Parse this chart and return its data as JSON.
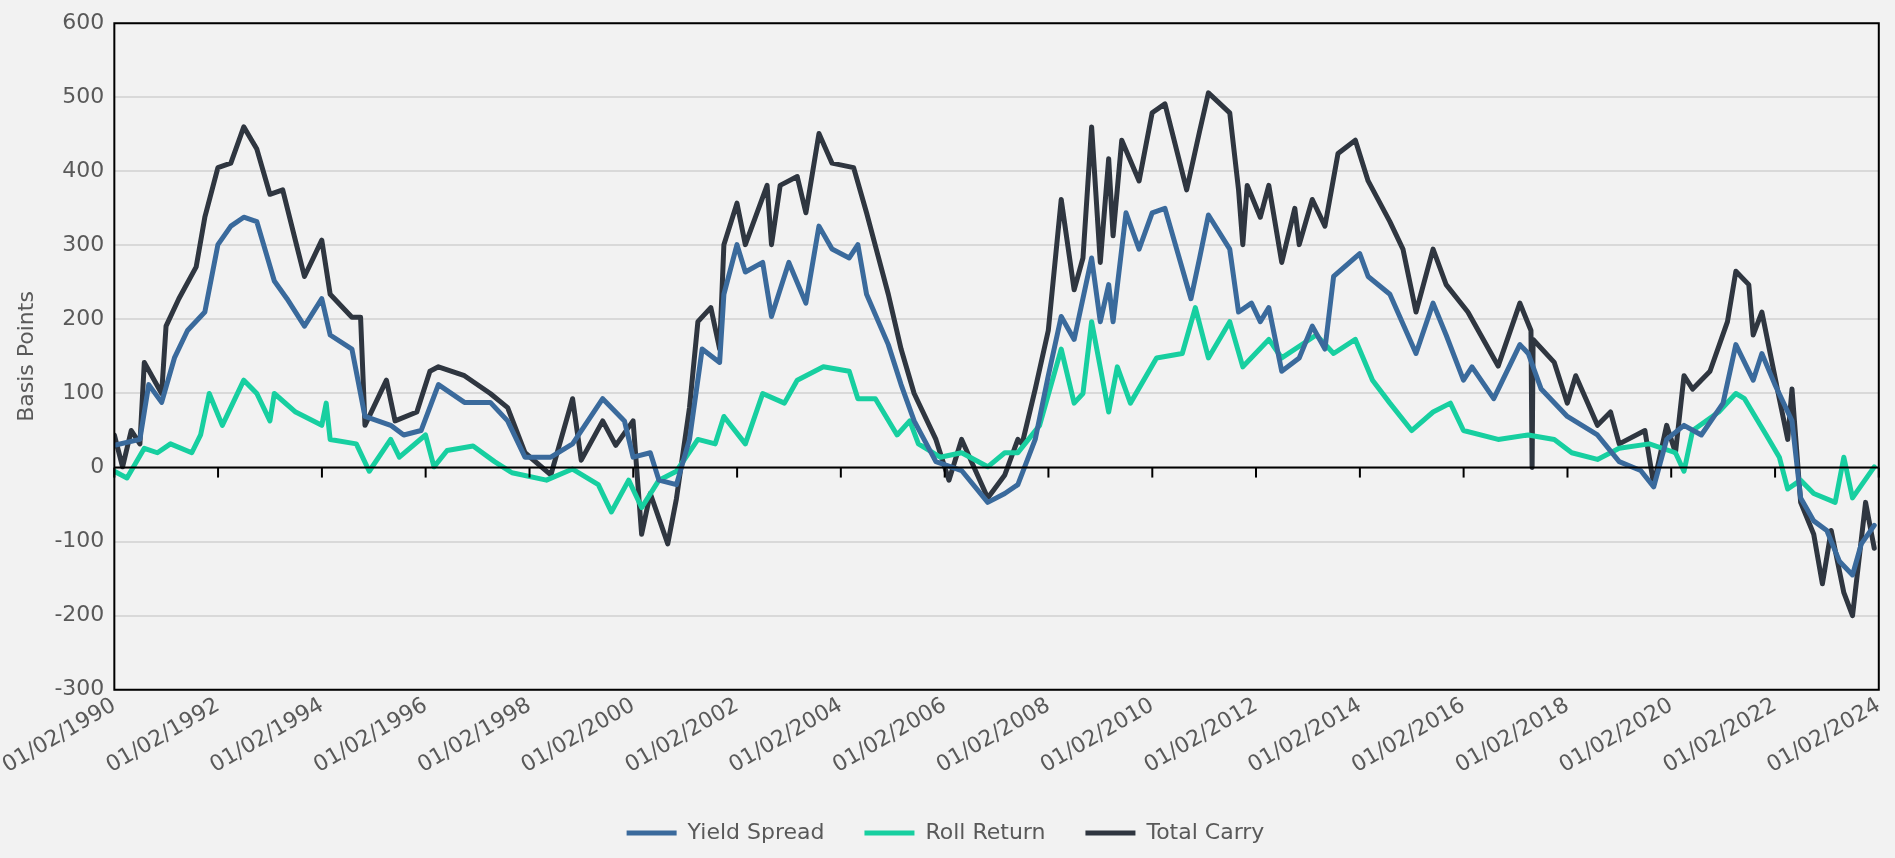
{
  "chart_data": {
    "type": "line",
    "ylabel": "Basis Points",
    "xlim": [
      "1990-01-02",
      "2024-01-02"
    ],
    "xticks": [
      {
        "value": "1990-01-02",
        "label": "01/02/1990"
      },
      {
        "value": "1992-01-02",
        "label": "01/02/1992"
      },
      {
        "value": "1994-01-02",
        "label": "01/02/1994"
      },
      {
        "value": "1996-01-02",
        "label": "01/02/1996"
      },
      {
        "value": "1998-01-02",
        "label": "01/02/1998"
      },
      {
        "value": "2000-01-02",
        "label": "01/02/2000"
      },
      {
        "value": "2002-01-02",
        "label": "01/02/2002"
      },
      {
        "value": "2004-01-02",
        "label": "01/02/2004"
      },
      {
        "value": "2006-01-02",
        "label": "01/02/2006"
      },
      {
        "value": "2008-01-02",
        "label": "01/02/2008"
      },
      {
        "value": "2010-01-02",
        "label": "01/02/2010"
      },
      {
        "value": "2012-01-02",
        "label": "01/02/2012"
      },
      {
        "value": "2014-01-02",
        "label": "01/02/2014"
      },
      {
        "value": "2016-01-02",
        "label": "01/02/2016"
      },
      {
        "value": "2018-01-02",
        "label": "01/02/2018"
      },
      {
        "value": "2020-01-02",
        "label": "01/02/2020"
      },
      {
        "value": "2022-01-02",
        "label": "01/02/2022"
      },
      {
        "value": "2024-01-02",
        "label": "01/02/2024"
      }
    ],
    "ylim": [
      -300,
      600
    ],
    "yticks": [
      -300,
      -200,
      -100,
      0,
      100,
      200,
      300,
      400,
      500,
      600
    ],
    "grid": "y",
    "legend": "bottom",
    "series": [
      {
        "name": "Yield Spread",
        "color": "#3a6a9c",
        "x": [
          "1990-01-02",
          "1990-07",
          "1990-09",
          "1990-12",
          "1991-03",
          "1991-06",
          "1991-10",
          "1992-01",
          "1992-04",
          "1992-07",
          "1992-10",
          "1993-02",
          "1993-05",
          "1993-09",
          "1994-01",
          "1994-03",
          "1994-08",
          "1994-11",
          "1995-05",
          "1995-08",
          "1995-12",
          "1996-04",
          "1996-10",
          "1997-04",
          "1997-08",
          "1997-12",
          "1998-06",
          "1998-11",
          "1999-06",
          "1999-11",
          "2000-01",
          "2000-05",
          "2000-07",
          "2000-11",
          "2001-02",
          "2001-05",
          "2001-09",
          "2001-10",
          "2002-01",
          "2002-03",
          "2002-07",
          "2002-09",
          "2003-01",
          "2003-05",
          "2003-08",
          "2003-11",
          "2004-03",
          "2004-05",
          "2004-07",
          "2004-12",
          "2005-03",
          "2005-06",
          "2005-11",
          "2006-05",
          "2006-11",
          "2007-03",
          "2007-06",
          "2007-10",
          "2008-01",
          "2008-04",
          "2008-07",
          "2008-11",
          "2009-01",
          "2009-03",
          "2009-04",
          "2009-07",
          "2009-10",
          "2010-01",
          "2010-04",
          "2010-10",
          "2010-12",
          "2011-02",
          "2011-07",
          "2011-09",
          "2011-12",
          "2012-02",
          "2012-04",
          "2012-07",
          "2012-11",
          "2013-02",
          "2013-05",
          "2013-07",
          "2014-01",
          "2014-03",
          "2014-08",
          "2015-02",
          "2015-06",
          "2015-09",
          "2016-01",
          "2016-03",
          "2016-08",
          "2017-02",
          "2017-04",
          "2017-07",
          "2018-01",
          "2018-08",
          "2019-01",
          "2019-06",
          "2019-09",
          "2019-12",
          "2020-04",
          "2020-08",
          "2021-01",
          "2021-04",
          "2021-08",
          "2021-10",
          "2022-01",
          "2022-05",
          "2022-07",
          "2022-10",
          "2023-01",
          "2023-04",
          "2023-07",
          "2023-09",
          "2023-12"
        ],
        "values": [
          30,
          38,
          112,
          88,
          148,
          185,
          210,
          301,
          326,
          338,
          332,
          252,
          228,
          191,
          228,
          179,
          160,
          69,
          57,
          44,
          50,
          112,
          88,
          88,
          63,
          14,
          14,
          32,
          93,
          63,
          14,
          20,
          -17,
          -23,
          38,
          160,
          142,
          234,
          301,
          264,
          277,
          204,
          277,
          222,
          326,
          295,
          283,
          301,
          234,
          166,
          112,
          63,
          8,
          -4,
          -47,
          -35,
          -23,
          38,
          124,
          204,
          173,
          283,
          197,
          247,
          197,
          344,
          295,
          344,
          350,
          228,
          283,
          341,
          295,
          210,
          222,
          197,
          216,
          130,
          148,
          191,
          160,
          258,
          289,
          258,
          234,
          154,
          222,
          179,
          118,
          136,
          93,
          166,
          154,
          106,
          69,
          44,
          8,
          -4,
          -26,
          38,
          57,
          44,
          87,
          166,
          118,
          154,
          112,
          63,
          -41,
          -72,
          -85,
          -127,
          -145,
          -103,
          -78
        ]
      },
      {
        "name": "Roll Return",
        "color": "#17cfa0",
        "x": [
          "1990-01-02",
          "1990-04",
          "1990-08",
          "1990-11",
          "1991-02",
          "1991-07",
          "1991-09",
          "1991-11",
          "1992-02",
          "1992-07",
          "1992-10",
          "1993-01",
          "1993-02",
          "1993-07",
          "1994-01",
          "1994-02",
          "1994-03",
          "1994-09",
          "1994-12",
          "1995-05",
          "1995-07",
          "1996-01",
          "1996-03",
          "1996-06",
          "1996-12",
          "1997-05",
          "1997-09",
          "1998-05",
          "1998-11",
          "1999-05",
          "1999-08",
          "1999-12",
          "2000-03",
          "2000-07",
          "2000-11",
          "2001-04",
          "2001-08",
          "2001-10",
          "2002-03",
          "2002-07",
          "2002-12",
          "2003-03",
          "2003-09",
          "2004-03",
          "2004-05",
          "2004-09",
          "2005-02",
          "2005-05",
          "2005-07",
          "2005-12",
          "2006-05",
          "2006-11",
          "2007-03",
          "2007-06",
          "2007-11",
          "2008-04",
          "2008-07",
          "2008-09",
          "2008-11",
          "2009-03",
          "2009-05",
          "2009-08",
          "2010-02",
          "2010-08",
          "2010-11",
          "2011-02",
          "2011-07",
          "2011-10",
          "2012-04",
          "2012-07",
          "2013-03",
          "2013-07",
          "2013-12",
          "2014-04",
          "2014-08",
          "2015-01",
          "2015-06",
          "2015-10",
          "2016-01",
          "2016-09",
          "2017-04",
          "2017-10",
          "2018-02",
          "2018-08",
          "2019-01",
          "2019-08",
          "2020-02",
          "2020-04",
          "2020-06",
          "2020-12",
          "2021-04",
          "2021-06",
          "2021-11",
          "2022-02",
          "2022-04",
          "2022-07",
          "2022-10",
          "2023-03",
          "2023-05",
          "2023-07",
          "2023-12"
        ],
        "values": [
          -5,
          -14,
          26,
          20,
          32,
          20,
          44,
          100,
          57,
          118,
          100,
          63,
          100,
          75,
          57,
          87,
          38,
          32,
          -5,
          38,
          14,
          44,
          1,
          23,
          29,
          8,
          -7,
          -17,
          -2,
          -23,
          -60,
          -17,
          -54,
          -17,
          -5,
          38,
          32,
          69,
          32,
          100,
          87,
          118,
          136,
          130,
          93,
          93,
          44,
          63,
          32,
          14,
          20,
          1,
          20,
          20,
          57,
          160,
          87,
          100,
          197,
          75,
          136,
          87,
          148,
          154,
          216,
          148,
          197,
          136,
          173,
          148,
          179,
          154,
          173,
          118,
          87,
          50,
          75,
          87,
          50,
          38,
          44,
          38,
          20,
          11,
          26,
          32,
          20,
          -5,
          50,
          75,
          100,
          93,
          44,
          14,
          -29,
          -17,
          -35,
          -47,
          14,
          -41,
          1
        ]
      },
      {
        "name": "Total Carry",
        "color": "#2f3640",
        "x": [
          "1990-01-02",
          "1990-03",
          "1990-05",
          "1990-07",
          "1990-08",
          "1990-12",
          "1991-01",
          "1991-04",
          "1991-08",
          "1991-10",
          "1992-01",
          "1992-04",
          "1992-07",
          "1992-10",
          "1993-01",
          "1993-04",
          "1993-09",
          "1994-01",
          "1994-03",
          "1994-08",
          "1994-10",
          "1994-11",
          "1995-04",
          "1995-06",
          "1995-11",
          "1996-02",
          "1996-04",
          "1996-10",
          "1997-04",
          "1997-08",
          "1997-12",
          "1998-06",
          "1998-11",
          "1999-01",
          "1999-06",
          "1999-09",
          "2000-01",
          "2000-03",
          "2000-05",
          "2000-09",
          "2000-11",
          "2001-02",
          "2001-04",
          "2001-07",
          "2001-09",
          "2001-10",
          "2002-01",
          "2002-03",
          "2002-08",
          "2002-09",
          "2002-11",
          "2003-03",
          "2003-05",
          "2003-08",
          "2003-11",
          "2004-04",
          "2004-07",
          "2004-12",
          "2005-03",
          "2005-06",
          "2005-11",
          "2006-02",
          "2006-05",
          "2006-11",
          "2007-03",
          "2007-06",
          "2007-07",
          "2007-10",
          "2008-01",
          "2008-04",
          "2008-07",
          "2008-09",
          "2008-11",
          "2009-01",
          "2009-03",
          "2009-04",
          "2009-06",
          "2009-10",
          "2010-01",
          "2010-04",
          "2010-09",
          "2010-12",
          "2011-02",
          "2011-07",
          "2011-09",
          "2011-10",
          "2011-11",
          "2012-02",
          "2012-04",
          "2012-07",
          "2012-10",
          "2012-11",
          "2013-02",
          "2013-05",
          "2013-08",
          "2013-12",
          "2014-03",
          "2014-08",
          "2014-11",
          "2015-02",
          "2015-06",
          "2015-09",
          "2016-02",
          "2016-09",
          "2017-02",
          "2017-04-20",
          "2017-04-28",
          "2017-05-05",
          "2017-10",
          "2018-01",
          "2018-03",
          "2018-08",
          "2018-11",
          "2019-01",
          "2019-07",
          "2019-09",
          "2019-12",
          "2020-02",
          "2020-04",
          "2020-06",
          "2020-10",
          "2021-02",
          "2021-04",
          "2021-07",
          "2021-08",
          "2021-10",
          "2022-02",
          "2022-04",
          "2022-05",
          "2022-07",
          "2022-10",
          "2022-12",
          "2023-02",
          "2023-05",
          "2023-07",
          "2023-10",
          "2023-12"
        ],
        "values": [
          44,
          1,
          50,
          32,
          142,
          100,
          191,
          228,
          271,
          338,
          405,
          411,
          460,
          430,
          369,
          375,
          258,
          307,
          234,
          203,
          203,
          57,
          118,
          63,
          75,
          130,
          136,
          124,
          100,
          81,
          20,
          -10,
          93,
          10,
          63,
          30,
          63,
          -90,
          -35,
          -103,
          -42,
          81,
          197,
          216,
          160,
          301,
          357,
          301,
          381,
          301,
          381,
          393,
          344,
          451,
          411,
          405,
          344,
          234,
          160,
          100,
          38,
          -17,
          38,
          -41,
          -10,
          38,
          32,
          106,
          185,
          362,
          240,
          283,
          460,
          277,
          417,
          313,
          442,
          387,
          479,
          491,
          375,
          454,
          506,
          479,
          375,
          301,
          381,
          338,
          381,
          277,
          350,
          301,
          362,
          326,
          424,
          442,
          387,
          332,
          295,
          210,
          295,
          247,
          210,
          137,
          222,
          185,
          0,
          173,
          142,
          87,
          124,
          57,
          75,
          32,
          50,
          -23,
          57,
          20,
          124,
          106,
          130,
          197,
          265,
          247,
          179,
          210,
          93,
          38,
          106,
          -47,
          -90,
          -157,
          -85,
          -169,
          -200,
          -47,
          -109
        ]
      }
    ]
  }
}
